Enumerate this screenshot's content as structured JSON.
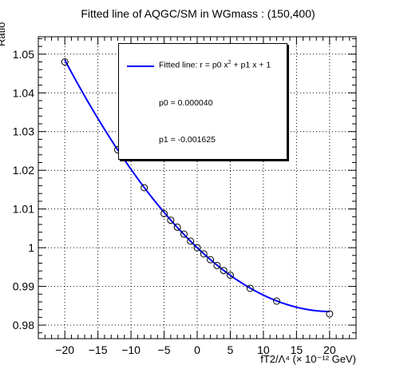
{
  "title": "Fitted line of AQGC/SM in WGmass : (150,400)",
  "y_axis_label": "Ratio",
  "x_axis_label": "fT2/Λ⁴ (× 10⁻¹² GeV)",
  "legend": {
    "fit_label_prefix": "Fitted line: r =  p0 x",
    "fit_label_exp": "2",
    "fit_label_suffix": " + p1 x + 1",
    "p0_text": "p0 = 0.000040",
    "p1_text": "p1 = -0.001625"
  },
  "colors": {
    "fit_line": "#0000ff",
    "marker": "#000000",
    "grid": "#000000"
  },
  "chart_data": {
    "type": "scatter",
    "title": "Fitted line of AQGC/SM in WGmass : (150,400)",
    "xlabel": "fT2/Λ⁴ (× 10⁻¹² GeV)",
    "ylabel": "Ratio",
    "xlim": [
      -24,
      24
    ],
    "ylim": [
      0.9765,
      1.0545
    ],
    "x_ticks": [
      -20,
      -15,
      -10,
      -5,
      0,
      5,
      10,
      15,
      20
    ],
    "y_ticks": [
      0.98,
      0.99,
      1,
      1.01,
      1.02,
      1.03,
      1.04,
      1.05
    ],
    "y_tick_labels": [
      "0.98",
      "0.99",
      "1",
      "1.01",
      "1.02",
      "1.03",
      "1.04",
      "1.05"
    ],
    "grid": true,
    "series": [
      {
        "name": "",
        "kind": "points",
        "x": [
          -20,
          -12,
          -8,
          -5,
          -4,
          -3,
          -2,
          -1,
          0,
          1,
          2,
          3,
          4,
          5,
          8,
          12,
          20
        ],
        "y": [
          1.048,
          1.0253,
          1.0155,
          1.0088,
          1.0071,
          1.0053,
          1.0035,
          1.0017,
          1.0,
          0.9984,
          0.9969,
          0.9954,
          0.9941,
          0.9929,
          0.9895,
          0.9862,
          0.9829
        ]
      },
      {
        "name": "Fitted line: r =  p0 x² + p1 x + 1",
        "kind": "fit",
        "p0": 4e-05,
        "p1": -0.001625,
        "x_range": [
          -20,
          20
        ]
      }
    ]
  }
}
